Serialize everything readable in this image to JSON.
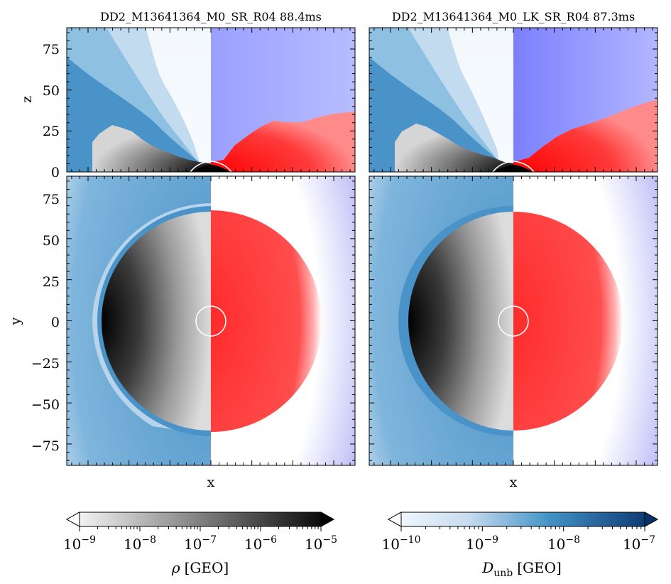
{
  "figure": {
    "title_left": "DD2_M13641364_M0_SR_R04 88.4ms",
    "title_right": "DD2_M13641364_M0_LK_SR_R04 87.3ms"
  },
  "chart_data": [
    {
      "type": "heatmap",
      "panel": "top-left",
      "title": "DD2_M13641364_M0_SR_R04 88.4ms",
      "xlabel": "",
      "ylabel": "z",
      "ylim": [
        0,
        88
      ],
      "yticks": [
        "0",
        "25",
        "50",
        "75"
      ],
      "quantities": {
        "left_half": "D_unb (blue)",
        "right_half": "rho (red/blue diverging)"
      }
    },
    {
      "type": "heatmap",
      "panel": "bottom-left",
      "xlabel": "x",
      "ylabel": "y",
      "ylim": [
        -88,
        88
      ],
      "yticks": [
        "75",
        "50",
        "25",
        "0",
        "−25",
        "−50",
        "−75"
      ],
      "quantities": {
        "left_half": "rho (grey) over D_unb (blue)",
        "right_half": "rho (red/blue diverging)"
      }
    },
    {
      "type": "heatmap",
      "panel": "top-right",
      "title": "DD2_M13641364_M0_LK_SR_R04 87.3ms",
      "xlabel": "",
      "ylabel": "",
      "ylim": [
        0,
        88
      ]
    },
    {
      "type": "heatmap",
      "panel": "bottom-right",
      "xlabel": "x",
      "ylabel": "",
      "ylim": [
        -88,
        88
      ]
    }
  ],
  "colorbars": {
    "rho": {
      "label_sym": "ρ",
      "label_unit": "[GEO]",
      "scale": "log",
      "range": [
        1e-09,
        1e-05
      ],
      "ticks": [
        {
          "base": "10",
          "exp": "−9"
        },
        {
          "base": "10",
          "exp": "−8"
        },
        {
          "base": "10",
          "exp": "−7"
        },
        {
          "base": "10",
          "exp": "−6"
        },
        {
          "base": "10",
          "exp": "−5"
        }
      ],
      "colors": [
        "#ffffff",
        "#000000"
      ]
    },
    "dunb": {
      "label_sym": "D",
      "label_sub": "unb",
      "label_unit": "[GEO]",
      "scale": "log",
      "range": [
        1e-10,
        1e-07
      ],
      "ticks": [
        {
          "base": "10",
          "exp": "−10"
        },
        {
          "base": "10",
          "exp": "−9"
        },
        {
          "base": "10",
          "exp": "−8"
        },
        {
          "base": "10",
          "exp": "−7"
        }
      ],
      "colors": [
        "#f7fbff",
        "#08306b"
      ]
    }
  },
  "labels": {
    "x_left": "x",
    "x_right": "x",
    "z": "z",
    "y": "y"
  }
}
